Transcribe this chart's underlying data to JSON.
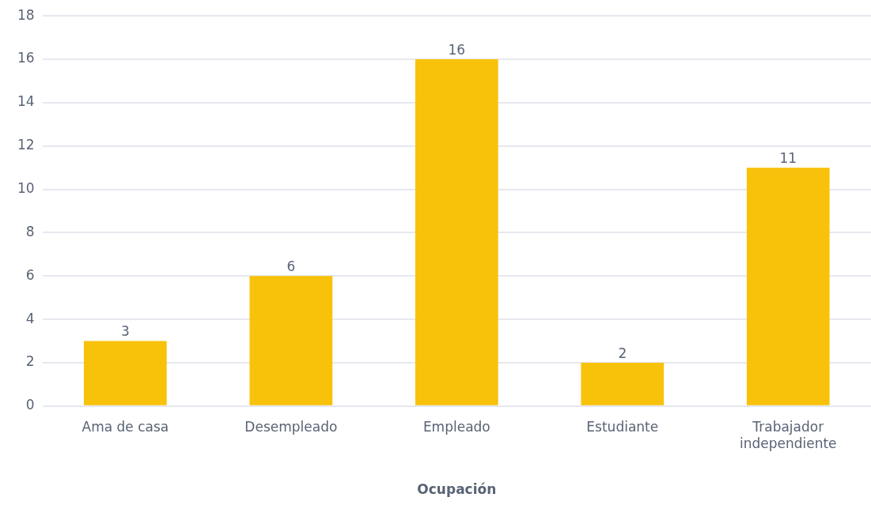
{
  "chart_data": {
    "type": "bar",
    "xlabel": "Ocupación",
    "categories": [
      "Ama de casa",
      "Desempleado",
      "Empleado",
      "Estudiante",
      "Trabajador independiente"
    ],
    "values": [
      3,
      6,
      16,
      2,
      11
    ],
    "color": "#f8c20a",
    "ylim": [
      0,
      18
    ],
    "yticks": [
      0,
      2,
      4,
      6,
      8,
      10,
      12,
      14,
      16,
      18
    ],
    "grid": "y",
    "data_labels": true
  }
}
